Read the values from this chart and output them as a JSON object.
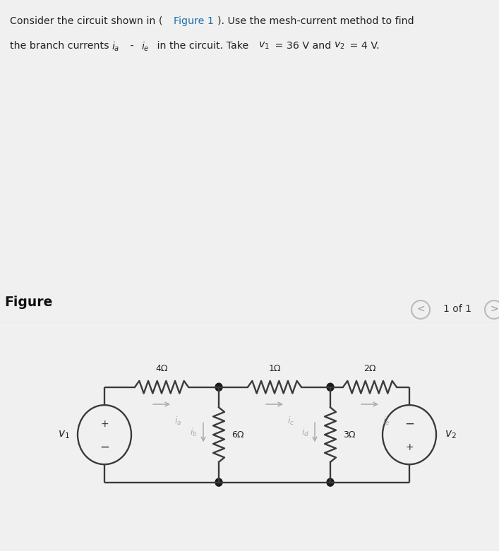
{
  "title_line1_pre": "Consider the circuit shown in (",
  "title_line1_link": "Figure 1",
  "title_line1_post": "). Use the mesh-current method to find",
  "title_line2_pre": "the branch currents ",
  "title_line2_ia": "iₐ",
  "title_line2_dash": " - ",
  "title_line2_ie": "iₑ",
  "title_line2_mid": " in the circuit. Take ",
  "title_line2_v1": "v₁",
  "title_line2_eq1": " = 36 V and ",
  "title_line2_v2": "v₂",
  "title_line2_eq2": " = 4 V.",
  "figure_label": "Figure",
  "page_label": "1 of 1",
  "header_bg": "#e8e8e8",
  "white_bg": "#ffffff",
  "body_bg": "#f0f0f0",
  "line_color": "#3a3a3a",
  "current_color": "#aaaaaa",
  "node_color": "#1a1a1a",
  "link_color": "#1a6faf",
  "text_color": "#222222"
}
